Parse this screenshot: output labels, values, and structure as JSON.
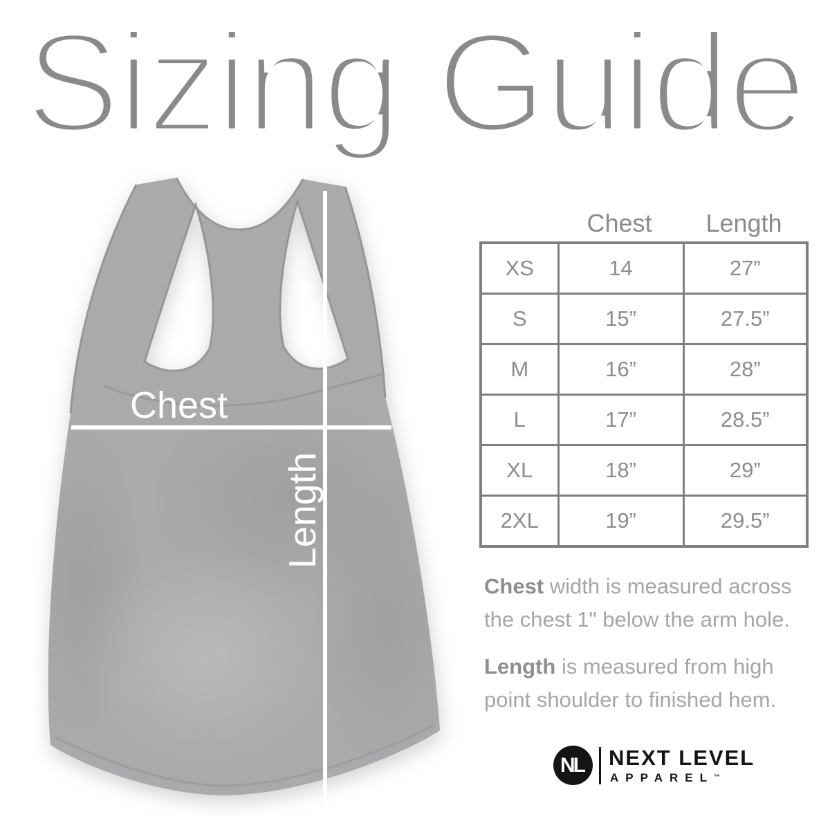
{
  "title": "Sizing Guide",
  "diagram": {
    "chest_label": "Chest",
    "length_label": "Length"
  },
  "size_chart": {
    "columns": [
      "Chest",
      "Length"
    ],
    "rows": [
      {
        "size": "XS",
        "chest": "14",
        "length": "27”"
      },
      {
        "size": "S",
        "chest": "15”",
        "length": "27.5”"
      },
      {
        "size": "M",
        "chest": "16”",
        "length": "28”"
      },
      {
        "size": "L",
        "chest": "17”",
        "length": "28.5”"
      },
      {
        "size": "XL",
        "chest": "18”",
        "length": "29”"
      },
      {
        "size": "2XL",
        "chest": "19”",
        "length": "29.5”"
      }
    ]
  },
  "notes": [
    {
      "term": "Chest",
      "text": " width is measured across the chest 1\" below the arm hole."
    },
    {
      "term": "Length",
      "text": " is measured from high point shoulder to finished hem."
    }
  ],
  "brand": {
    "monogram": "NL",
    "name": "NEXT LEVEL",
    "subname": "APPAREL",
    "tm": "™"
  },
  "colors": {
    "title_gray": "#8a8a8c",
    "fabric_gray": "#a8a8ab",
    "fabric_binding": "#96969a",
    "table_border": "#7f7f82",
    "table_text": "#8d8d8f",
    "note_text": "#a6a6a8",
    "note_term": "#8e8e90",
    "measure_line": "#ffffff",
    "brand_black": "#141414",
    "background": "#ffffff"
  }
}
